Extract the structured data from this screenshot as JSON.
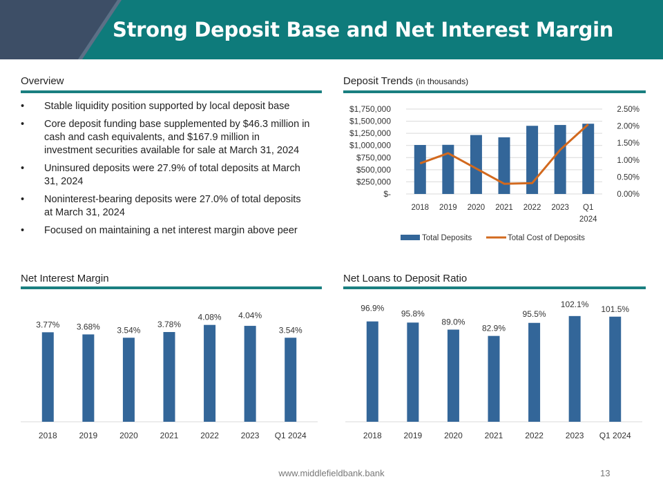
{
  "header": {
    "title": "Strong Deposit Base and Net Interest Margin"
  },
  "overview": {
    "title": "Overview",
    "bullets": [
      "Stable liquidity position supported by local deposit base",
      "Core deposit funding base supplemented by $46.3 million in cash and cash equivalents, and $167.9 million in investment securities available for sale at March 31, 2024",
      "Uninsured deposits were 27.9% of total deposits at March 31, 2024",
      "Noninterest-bearing deposits were 27.0% of total deposits at March 31, 2024",
      "Focused on maintaining a net interest margin above peer"
    ]
  },
  "deposit_trends": {
    "title": "Deposit Trends",
    "subtitle": "(in thousands)"
  },
  "nim": {
    "title": "Net Interest Margin"
  },
  "ltd": {
    "title": "Net Loans to Deposit Ratio"
  },
  "footer": {
    "url": "www.middlefieldbank.bank",
    "page": "13"
  },
  "colors": {
    "bar": "#336699",
    "line": "#d2691e",
    "accent": "#1a7f80",
    "header": "#0e7b7b"
  },
  "chart_data": [
    {
      "type": "bar",
      "title": "Deposit Trends",
      "categories": [
        "2018",
        "2019",
        "2020",
        "2021",
        "2022",
        "2023",
        "Q1 2024"
      ],
      "category_lines": [
        [
          "2018"
        ],
        [
          "2019"
        ],
        [
          "2020"
        ],
        [
          "2021"
        ],
        [
          "2022"
        ],
        [
          "2023"
        ],
        [
          "Q1",
          "2024"
        ]
      ],
      "series": [
        {
          "name": "Total Deposits",
          "type": "bar",
          "axis": "left",
          "values": [
            1010000,
            1013000,
            1215000,
            1168000,
            1405000,
            1422000,
            1448000
          ]
        },
        {
          "name": "Total Cost of Deposits",
          "type": "line",
          "axis": "right",
          "values": [
            0.9,
            1.2,
            0.75,
            0.3,
            0.32,
            1.3,
            2.05
          ]
        }
      ],
      "ylim": [
        0,
        1750000
      ],
      "y_ticks": [
        0,
        250000,
        500000,
        750000,
        1000000,
        1250000,
        1500000,
        1750000
      ],
      "y_tick_labels": [
        "$-",
        "$250,000",
        "$500,000",
        "$750,000",
        "$1,000,000",
        "$1,250,000",
        "$1,500,000",
        "$1,750,000"
      ],
      "y2lim": [
        0,
        2.5
      ],
      "y2_ticks": [
        0,
        0.5,
        1.0,
        1.5,
        2.0,
        2.5
      ],
      "y2_tick_labels": [
        "0.00%",
        "0.50%",
        "1.00%",
        "1.50%",
        "2.00%",
        "2.50%"
      ],
      "grid": true,
      "legend": "bottom"
    },
    {
      "type": "bar",
      "title": "Net Interest Margin",
      "categories": [
        "2018",
        "2019",
        "2020",
        "2021",
        "2022",
        "2023",
        "Q1 2024"
      ],
      "values": [
        3.77,
        3.68,
        3.54,
        3.78,
        4.08,
        4.04,
        3.54
      ],
      "data_labels": [
        "3.77%",
        "3.68%",
        "3.54%",
        "3.78%",
        "4.08%",
        "4.04%",
        "3.54%"
      ],
      "ylim": [
        0,
        4.1
      ],
      "grid": false
    },
    {
      "type": "bar",
      "title": "Net Loans to Deposit Ratio",
      "categories": [
        "2018",
        "2019",
        "2020",
        "2021",
        "2022",
        "2023",
        "Q1 2024"
      ],
      "values": [
        96.9,
        95.8,
        89.0,
        82.9,
        95.5,
        102.1,
        101.5
      ],
      "data_labels": [
        "96.9%",
        "95.8%",
        "89.0%",
        "82.9%",
        "95.5%",
        "102.1%",
        "101.5%"
      ],
      "ylim": [
        0,
        102
      ],
      "grid": false
    }
  ]
}
